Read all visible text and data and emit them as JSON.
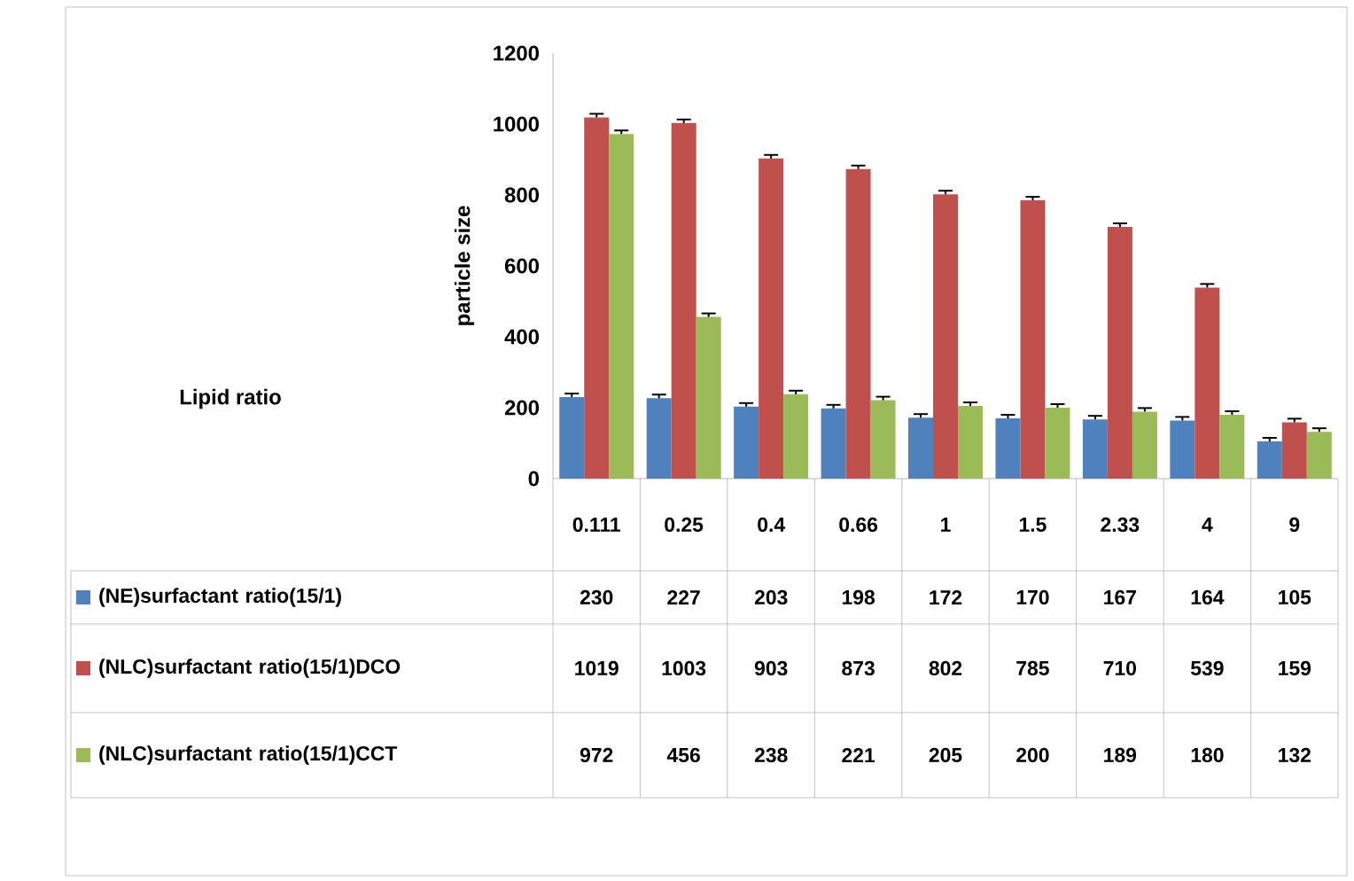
{
  "chart_data": {
    "type": "bar",
    "ylabel": "particle size",
    "annotations": [
      "Lipid ratio"
    ],
    "categories": [
      "0.111",
      "0.25",
      "0.4",
      "0.66",
      "1",
      "1.5",
      "2.33",
      "4",
      "9"
    ],
    "series": [
      {
        "name": "(NE)surfactant ratio(15/1)",
        "color": "#4f81bd",
        "values": [
          230,
          227,
          203,
          198,
          172,
          170,
          167,
          164,
          105
        ],
        "errors": [
          [
            230,
            240
          ],
          [
            227,
            237
          ],
          [
            203,
            213
          ],
          [
            198,
            208
          ],
          [
            172,
            182
          ],
          [
            170,
            180
          ],
          [
            167,
            177
          ],
          [
            164,
            174
          ],
          [
            105,
            115
          ]
        ]
      },
      {
        "name": "(NLC)surfactant ratio(15/1)DCO",
        "color": "#c0504d",
        "values": [
          1019,
          1003,
          903,
          873,
          802,
          785,
          710,
          539,
          159
        ],
        "errors": [
          [
            1019,
            1029
          ],
          [
            1003,
            1013
          ],
          [
            903,
            913
          ],
          [
            873,
            883
          ],
          [
            802,
            812
          ],
          [
            785,
            795
          ],
          [
            710,
            720
          ],
          [
            539,
            549
          ],
          [
            159,
            169
          ]
        ]
      },
      {
        "name": "(NLC)surfactant ratio(15/1)CCT",
        "color": "#9bbb59",
        "values": [
          972,
          456,
          238,
          221,
          205,
          200,
          189,
          180,
          132
        ],
        "errors": [
          [
            972,
            982
          ],
          [
            456,
            466
          ],
          [
            238,
            248
          ],
          [
            221,
            231
          ],
          [
            205,
            215
          ],
          [
            200,
            210
          ],
          [
            189,
            199
          ],
          [
            180,
            190
          ],
          [
            132,
            142
          ]
        ]
      }
    ],
    "ylim": [
      0,
      1200
    ],
    "yticks": [
      0,
      200,
      400,
      600,
      800,
      1000,
      1200
    ],
    "data_labels": true,
    "legend": "bottom left"
  }
}
